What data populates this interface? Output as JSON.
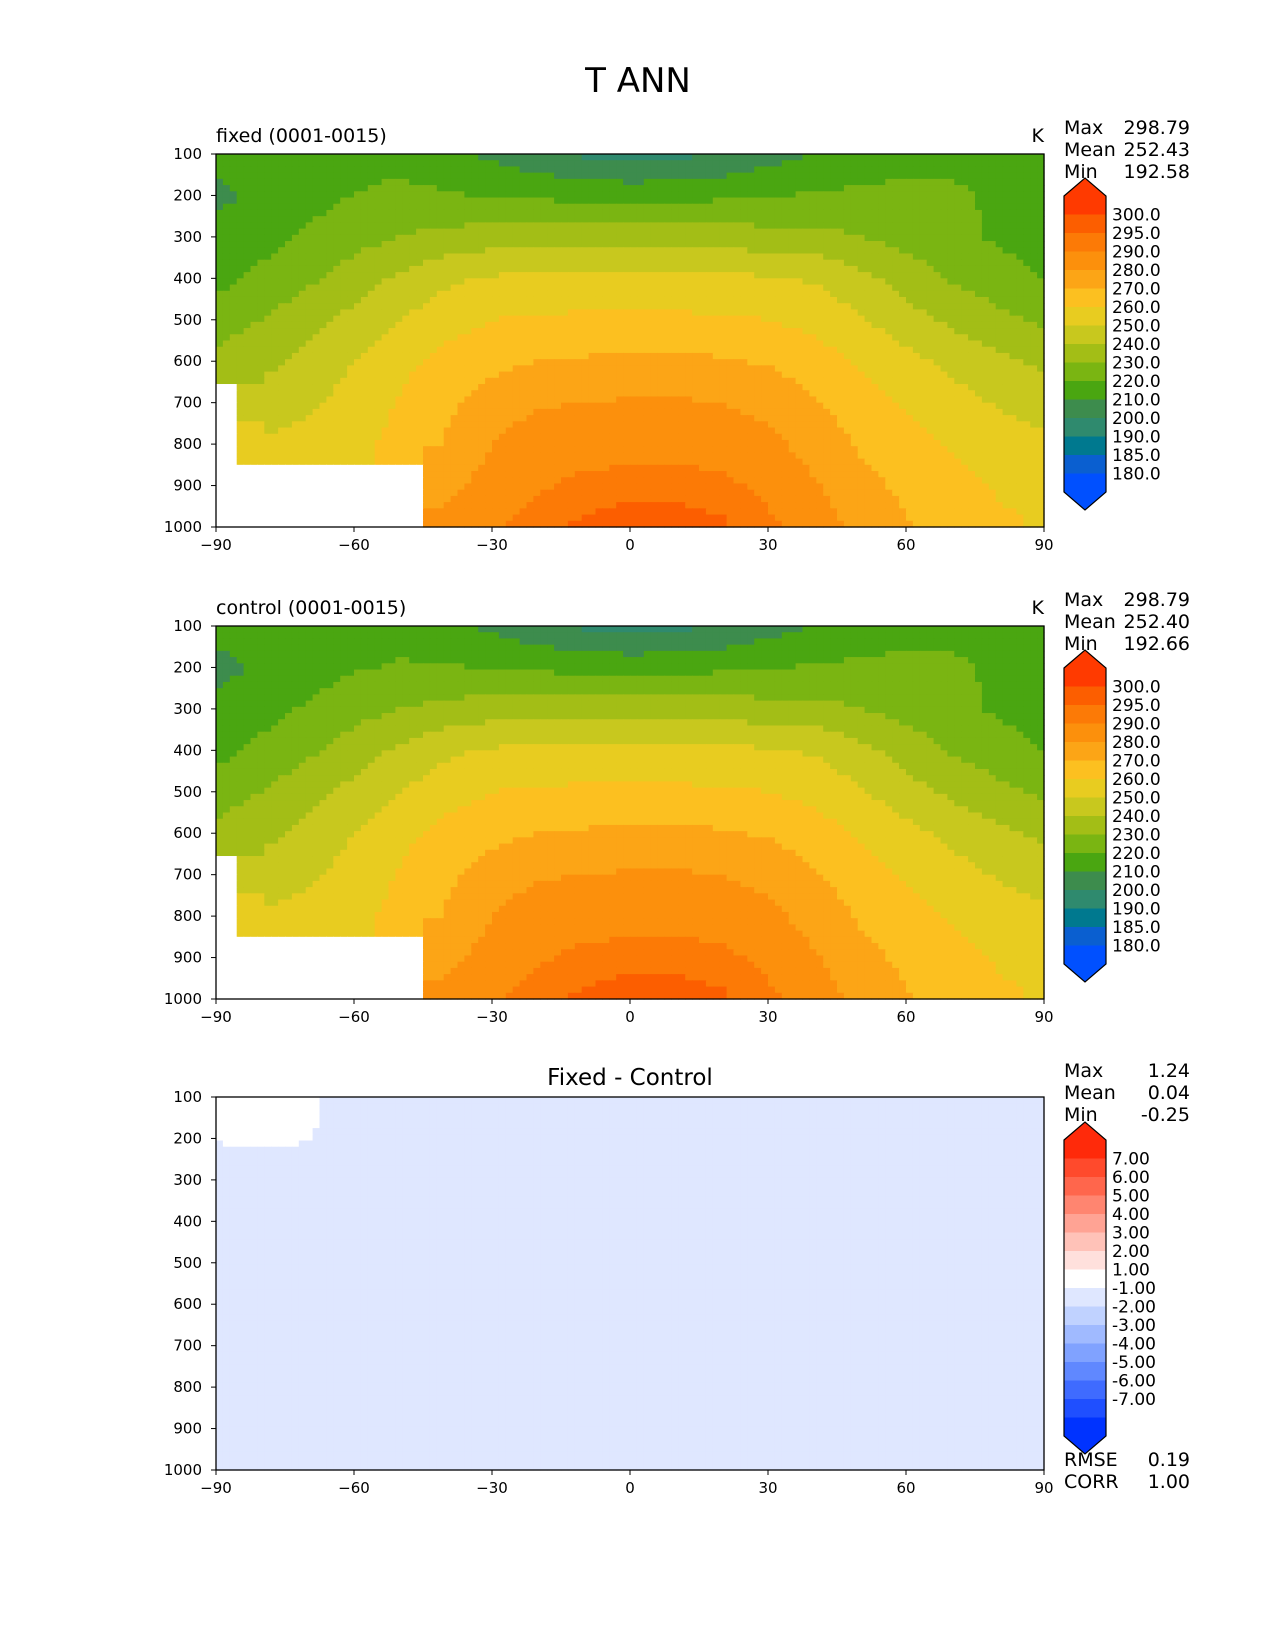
{
  "figure": {
    "title": "T ANN"
  },
  "colors": {
    "temperature_levels": [
      "#0050ff",
      "#0a5fd0",
      "#00798f",
      "#2f8a6e",
      "#3d8c4d",
      "#4aa611",
      "#7ab512",
      "#a3be16",
      "#c8c81e",
      "#e8cc20",
      "#fcc020",
      "#fca516",
      "#fc900c",
      "#fc7a06",
      "#fc5e00",
      "#ff3a00"
    ],
    "difference_levels": [
      "#0033ff",
      "#1f4fff",
      "#3f6bff",
      "#6088ff",
      "#80a2ff",
      "#a0baff",
      "#c0d2ff",
      "#dfe7ff",
      "#ffffff",
      "#ffe0dc",
      "#ffc2b8",
      "#ffa394",
      "#ff8570",
      "#ff664c",
      "#ff4a2c",
      "#ff2a0a"
    ],
    "land_mask": "#ffffff"
  },
  "chart_data": [
    {
      "type": "heatmap",
      "name": "fixed",
      "left_title": "fixed (0001-0015)",
      "units": "K",
      "xticks": [
        -90,
        -60,
        -30,
        0,
        30,
        60,
        90
      ],
      "yticks": [
        100,
        200,
        300,
        400,
        500,
        600,
        700,
        800,
        900,
        1000
      ],
      "xlim": [
        -90,
        90
      ],
      "ylim": [
        1000,
        100
      ],
      "x": [
        -90,
        -80,
        -70,
        -60,
        -50,
        -40,
        -30,
        -20,
        -10,
        0,
        10,
        20,
        30,
        40,
        50,
        60,
        70,
        80,
        90
      ],
      "y": [
        100,
        200,
        300,
        400,
        500,
        600,
        700,
        800,
        900,
        1000
      ],
      "z": [
        [
          215,
          216,
          218,
          218,
          217,
          213,
          208,
          203,
          198,
          195,
          197,
          201,
          206,
          210,
          214,
          217,
          218,
          218,
          218
        ],
        [
          207,
          213,
          217,
          220,
          222,
          221,
          219,
          218,
          217,
          217,
          217,
          218,
          219,
          221,
          222,
          222,
          221,
          219,
          218
        ],
        [
          214,
          217,
          221,
          226,
          230,
          233,
          235,
          236,
          236,
          236,
          236,
          235,
          234,
          233,
          230,
          226,
          222,
          219,
          215
        ],
        [
          217,
          222,
          228,
          235,
          242,
          248,
          251,
          252,
          252,
          252,
          252,
          252,
          251,
          249,
          243,
          236,
          229,
          224,
          220
        ],
        [
          225,
          230,
          237,
          243,
          250,
          256,
          260,
          261,
          262,
          262,
          262,
          261,
          260,
          257,
          251,
          244,
          238,
          233,
          228
        ],
        [
          233,
          237,
          243,
          250,
          257,
          263,
          267,
          270,
          271,
          272,
          272,
          271,
          269,
          265,
          259,
          253,
          247,
          242,
          238
        ],
        [
          null,
          245,
          248,
          254,
          261,
          268,
          275,
          279,
          280,
          281,
          281,
          280,
          277,
          271,
          265,
          259,
          254,
          249,
          246
        ],
        [
          null,
          251,
          254,
          257,
          263,
          271,
          280,
          285,
          286,
          287,
          287,
          286,
          283,
          276,
          269,
          264,
          259,
          255,
          252
        ],
        [
          null,
          null,
          null,
          null,
          null,
          277,
          284,
          289,
          292,
          293,
          293,
          292,
          288,
          281,
          273,
          268,
          263,
          259,
          257
        ],
        [
          null,
          null,
          null,
          null,
          null,
          283,
          289,
          294,
          296,
          298,
          298,
          296,
          292,
          285,
          277,
          271,
          266,
          262,
          259
        ]
      ],
      "stats": [
        [
          "Max",
          "298.79"
        ],
        [
          "Mean",
          "252.43"
        ],
        [
          "Min",
          "192.58"
        ]
      ],
      "colorbar": {
        "levels": [
          "300.0",
          "295.0",
          "290.0",
          "280.0",
          "270.0",
          "260.0",
          "250.0",
          "240.0",
          "230.0",
          "220.0",
          "210.0",
          "200.0",
          "190.0",
          "185.0",
          "180.0"
        ],
        "bounds": [
          180,
          185,
          190,
          200,
          210,
          220,
          230,
          240,
          250,
          260,
          270,
          280,
          290,
          295,
          300
        ]
      }
    },
    {
      "type": "heatmap",
      "name": "control",
      "left_title": "control (0001-0015)",
      "units": "K",
      "xticks": [
        -90,
        -60,
        -30,
        0,
        30,
        60,
        90
      ],
      "yticks": [
        100,
        200,
        300,
        400,
        500,
        600,
        700,
        800,
        900,
        1000
      ],
      "xlim": [
        -90,
        90
      ],
      "ylim": [
        1000,
        100
      ],
      "x": [
        -90,
        -80,
        -70,
        -60,
        -50,
        -40,
        -30,
        -20,
        -10,
        0,
        10,
        20,
        30,
        40,
        50,
        60,
        70,
        80,
        90
      ],
      "y": [
        100,
        200,
        300,
        400,
        500,
        600,
        700,
        800,
        900,
        1000
      ],
      "z": [
        [
          214,
          215,
          217,
          217,
          216,
          213,
          208,
          203,
          198,
          195,
          197,
          201,
          206,
          210,
          214,
          217,
          218,
          218,
          218
        ],
        [
          206,
          212,
          216,
          219,
          221,
          221,
          219,
          218,
          217,
          217,
          217,
          218,
          219,
          221,
          222,
          222,
          221,
          219,
          218
        ],
        [
          214,
          217,
          221,
          226,
          230,
          233,
          235,
          236,
          236,
          236,
          236,
          235,
          234,
          233,
          230,
          226,
          222,
          219,
          215
        ],
        [
          217,
          222,
          228,
          235,
          242,
          248,
          251,
          252,
          252,
          252,
          252,
          252,
          251,
          249,
          243,
          236,
          229,
          224,
          220
        ],
        [
          225,
          230,
          237,
          243,
          250,
          256,
          260,
          261,
          262,
          262,
          262,
          261,
          260,
          257,
          251,
          244,
          238,
          233,
          228
        ],
        [
          233,
          237,
          243,
          250,
          257,
          263,
          267,
          270,
          271,
          272,
          272,
          271,
          269,
          265,
          259,
          253,
          247,
          242,
          238
        ],
        [
          null,
          245,
          248,
          254,
          261,
          268,
          275,
          279,
          280,
          281,
          281,
          280,
          277,
          271,
          265,
          259,
          254,
          249,
          246
        ],
        [
          null,
          251,
          254,
          257,
          263,
          271,
          280,
          285,
          286,
          287,
          287,
          286,
          283,
          276,
          269,
          264,
          259,
          255,
          252
        ],
        [
          null,
          null,
          null,
          null,
          null,
          277,
          284,
          289,
          292,
          293,
          293,
          292,
          288,
          281,
          273,
          268,
          263,
          259,
          257
        ],
        [
          null,
          null,
          null,
          null,
          null,
          283,
          289,
          294,
          296,
          298,
          298,
          296,
          292,
          285,
          277,
          271,
          266,
          262,
          259
        ]
      ],
      "stats": [
        [
          "Max",
          "298.79"
        ],
        [
          "Mean",
          "252.40"
        ],
        [
          "Min",
          "192.66"
        ]
      ],
      "colorbar": {
        "levels": [
          "300.0",
          "295.0",
          "290.0",
          "280.0",
          "270.0",
          "260.0",
          "250.0",
          "240.0",
          "230.0",
          "220.0",
          "210.0",
          "200.0",
          "190.0",
          "185.0",
          "180.0"
        ],
        "bounds": [
          180,
          185,
          190,
          200,
          210,
          220,
          230,
          240,
          250,
          260,
          270,
          280,
          290,
          295,
          300
        ]
      }
    },
    {
      "type": "heatmap",
      "name": "difference",
      "center_title": "Fixed - Control",
      "xticks": [
        -90,
        -60,
        -30,
        0,
        30,
        60,
        90
      ],
      "yticks": [
        100,
        200,
        300,
        400,
        500,
        600,
        700,
        800,
        900,
        1000
      ],
      "xlim": [
        -90,
        90
      ],
      "ylim": [
        1000,
        100
      ],
      "x": [
        -90,
        -80,
        -70,
        -60,
        -50,
        -40,
        -30,
        -20,
        -10,
        0,
        10,
        20,
        30,
        40,
        50,
        60,
        70,
        80,
        90
      ],
      "y": [
        100,
        200,
        300,
        400,
        500,
        600,
        700,
        800,
        900,
        1000
      ],
      "z": [
        [
          1.1,
          1.2,
          1.2,
          0.6,
          0.1,
          0,
          0,
          0,
          0,
          0,
          0,
          0,
          0,
          0,
          0,
          0,
          0,
          0,
          0
        ],
        [
          1.1,
          1.2,
          1.1,
          0.4,
          0.05,
          0,
          0,
          0,
          0,
          0,
          0,
          0,
          0,
          0,
          0,
          0,
          0,
          0,
          0
        ],
        [
          0.2,
          0.2,
          0.1,
          0.05,
          0,
          0,
          0,
          0,
          0,
          0,
          0,
          0,
          0,
          0,
          0,
          0,
          0,
          0,
          0
        ],
        [
          0,
          0,
          0,
          0,
          0,
          0,
          0,
          0,
          0,
          0,
          0,
          0,
          0,
          0,
          0,
          0,
          0,
          0,
          0
        ],
        [
          0,
          0,
          0,
          0,
          0,
          0,
          0,
          0,
          0,
          0,
          0,
          0,
          0,
          0,
          0,
          0,
          0,
          0,
          0
        ],
        [
          0,
          0,
          0,
          0,
          0,
          0,
          0,
          0,
          0,
          0,
          0,
          0,
          0,
          0,
          0,
          0,
          0,
          0,
          0
        ],
        [
          0,
          0,
          0,
          0,
          0,
          0,
          0,
          0,
          0,
          0,
          0,
          0,
          0,
          0,
          0,
          0,
          0,
          0,
          0
        ],
        [
          0,
          0,
          0,
          0,
          0,
          0,
          0,
          0,
          0,
          0,
          0,
          0,
          0,
          0,
          0,
          0,
          0,
          0,
          0
        ],
        [
          0,
          0,
          0,
          0,
          0,
          0,
          0,
          0,
          0,
          0,
          0,
          0,
          0,
          0,
          0,
          0,
          0,
          0,
          0
        ],
        [
          0,
          0,
          0,
          0,
          0,
          0,
          0,
          0,
          0,
          0,
          0,
          0,
          0,
          0,
          0,
          0,
          0,
          0,
          0
        ]
      ],
      "stats": [
        [
          "Max",
          "1.24"
        ],
        [
          "Mean",
          "0.04"
        ],
        [
          "Min",
          "-0.25"
        ]
      ],
      "bottom_stats": [
        [
          "RMSE",
          "0.19"
        ],
        [
          "CORR",
          "1.00"
        ]
      ],
      "colorbar": {
        "levels": [
          "7.00",
          "6.00",
          "5.00",
          "4.00",
          "3.00",
          "2.00",
          "1.00",
          "-1.00",
          "-2.00",
          "-3.00",
          "-4.00",
          "-5.00",
          "-6.00",
          "-7.00"
        ],
        "bounds": [
          -7,
          -6,
          -5,
          -4,
          -3,
          -2,
          -1,
          1,
          2,
          3,
          4,
          5,
          6,
          7
        ]
      }
    }
  ]
}
